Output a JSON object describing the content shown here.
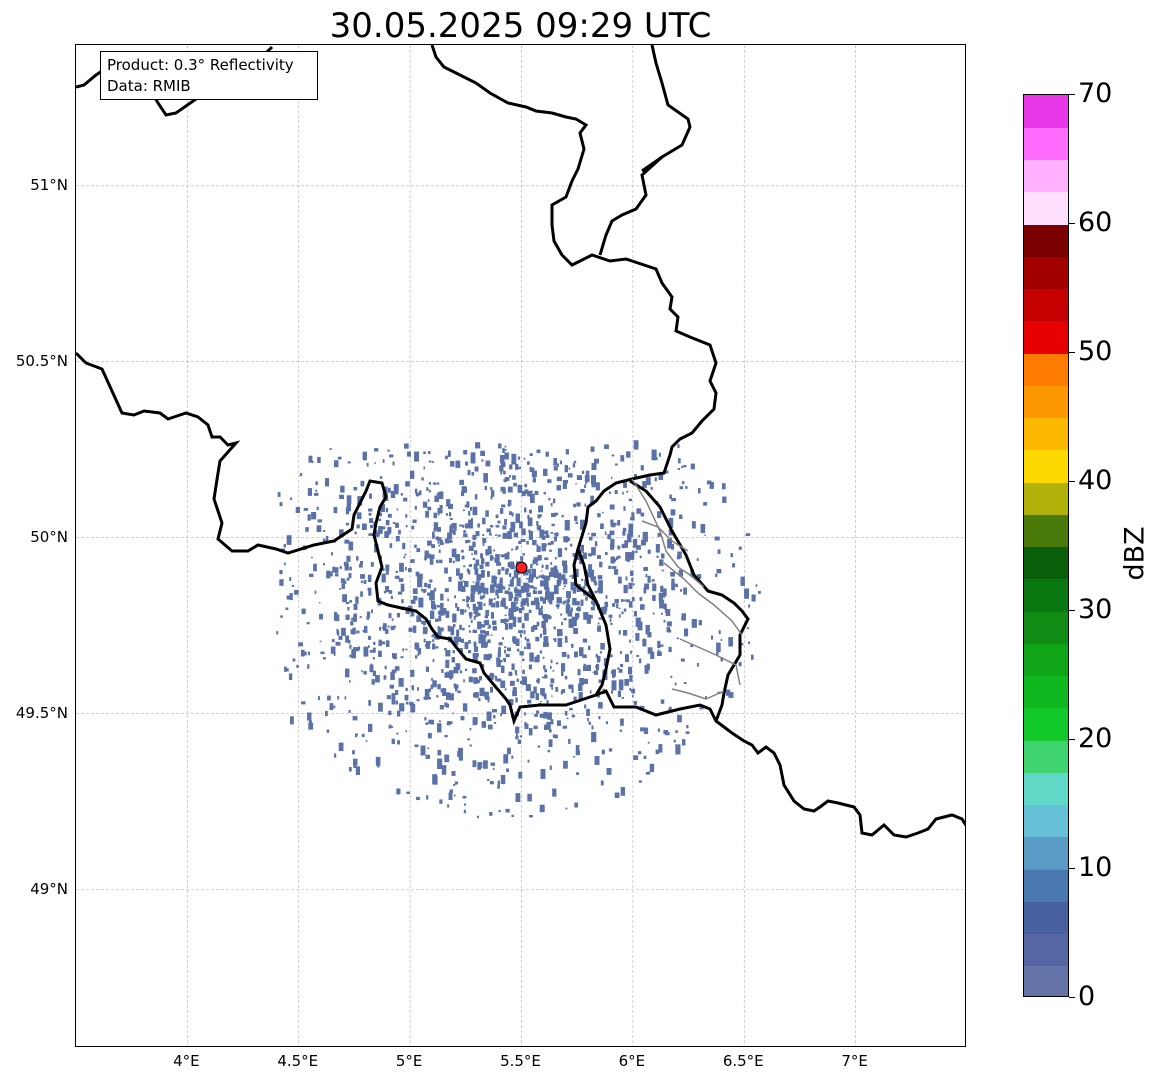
{
  "title": "30.05.2025 09:29 UTC",
  "info": {
    "product": "Product: 0.3° Reflectivity",
    "data": "Data: RMIB"
  },
  "map": {
    "lon_range": [
      3.5,
      7.5
    ],
    "lat_range": [
      48.55,
      51.4
    ],
    "lat_ticks": [
      {
        "value": 51.0,
        "label": "51°N"
      },
      {
        "value": 50.5,
        "label": "50.5°N"
      },
      {
        "value": 50.0,
        "label": "50°N"
      },
      {
        "value": 49.5,
        "label": "49.5°N"
      },
      {
        "value": 49.0,
        "label": "49°N"
      }
    ],
    "lon_ticks": [
      {
        "value": 4.0,
        "label": "4°E"
      },
      {
        "value": 4.5,
        "label": "4.5°E"
      },
      {
        "value": 5.0,
        "label": "5°E"
      },
      {
        "value": 5.5,
        "label": "5.5°E"
      },
      {
        "value": 6.0,
        "label": "6°E"
      },
      {
        "value": 6.5,
        "label": "6.5°E"
      },
      {
        "value": 7.0,
        "label": "7°E"
      }
    ],
    "grid": true,
    "radar_site": {
      "lon": 5.5,
      "lat": 49.915,
      "color": "#ff2020"
    },
    "echo_color": "#5a72a8",
    "border_color": "#000000",
    "region_border_color": "#808080"
  },
  "colorbar": {
    "unit": "dBZ",
    "min": 0,
    "max": 70,
    "step": 2.5,
    "ticks": [
      {
        "value": 0,
        "label": "0"
      },
      {
        "value": 10,
        "label": "10"
      },
      {
        "value": 20,
        "label": "20"
      },
      {
        "value": 30,
        "label": "30"
      },
      {
        "value": 40,
        "label": "40"
      },
      {
        "value": 50,
        "label": "50"
      },
      {
        "value": 60,
        "label": "60"
      },
      {
        "value": 70,
        "label": "70"
      }
    ],
    "colors": [
      "#6473a8",
      "#5666a2",
      "#4660a0",
      "#4a78b0",
      "#5a9ac4",
      "#66c0d8",
      "#60d8c8",
      "#40d470",
      "#12c828",
      "#10b820",
      "#10a418",
      "#108c14",
      "#0a7810",
      "#0a600a",
      "#4a7a0a",
      "#b0b20a",
      "#ffd800",
      "#ffb800",
      "#ff9800",
      "#ff7c00",
      "#e60000",
      "#c40000",
      "#a00000",
      "#7a0000",
      "#ffe0ff",
      "#ffb0ff",
      "#ff6cff",
      "#e838e8"
    ]
  }
}
